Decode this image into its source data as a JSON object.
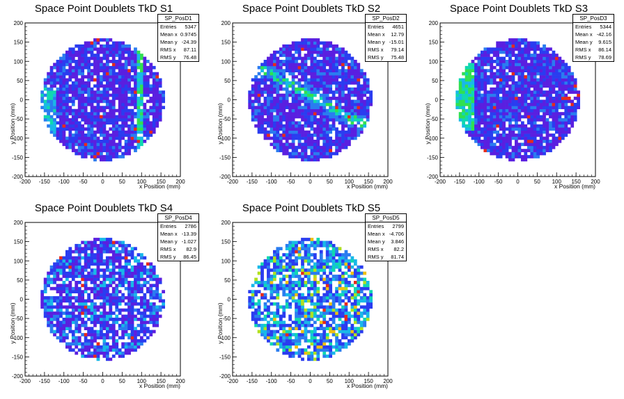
{
  "chart_data": [
    {
      "type": "heatmap",
      "title": "Space Point Doublets TkD S1",
      "xlabel": "x Position (mm)",
      "ylabel": "y Position (mm)",
      "xlim": [
        -200,
        200
      ],
      "ylim": [
        -200,
        200
      ],
      "xticks": [
        "-200",
        "-150",
        "-100",
        "-50",
        "0",
        "50",
        "100",
        "150",
        "200"
      ],
      "yticks": [
        "-200",
        "-150",
        "-100",
        "-50",
        "0",
        "50",
        "100",
        "150",
        "200"
      ],
      "stats": {
        "name": "SP_PosD1",
        "rows": [
          {
            "label": "Entries",
            "value": "5347"
          },
          {
            "label": "Mean x",
            "value": "0.9745"
          },
          {
            "label": "Mean y",
            "value": "-24.39"
          },
          {
            "label": "RMS x",
            "value": "87.11"
          },
          {
            "label": "RMS y",
            "value": "76.48"
          }
        ]
      },
      "pattern": "vertical-band-left-band",
      "disk_radius": 160
    },
    {
      "type": "heatmap",
      "title": "Space Point Doublets TkD S2",
      "xlabel": "x Position (mm)",
      "ylabel": "y Position (mm)",
      "xlim": [
        -200,
        200
      ],
      "ylim": [
        -200,
        200
      ],
      "xticks": [
        "-200",
        "-150",
        "-100",
        "-50",
        "0",
        "50",
        "100",
        "150",
        "200"
      ],
      "yticks": [
        "-200",
        "-150",
        "-100",
        "-50",
        "0",
        "50",
        "100",
        "150",
        "200"
      ],
      "stats": {
        "name": "SP_PosD2",
        "rows": [
          {
            "label": "Entries",
            "value": "4651"
          },
          {
            "label": "Mean x",
            "value": "12.79"
          },
          {
            "label": "Mean y",
            "value": "-15.01"
          },
          {
            "label": "RMS x",
            "value": "79.14"
          },
          {
            "label": "RMS y",
            "value": "75.48"
          }
        ]
      },
      "pattern": "diagonal-band",
      "disk_radius": 160
    },
    {
      "type": "heatmap",
      "title": "Space Point Doublets TkD S3",
      "xlabel": "x Position (mm)",
      "ylabel": "y Position (mm)",
      "xlim": [
        -200,
        200
      ],
      "ylim": [
        -200,
        200
      ],
      "xticks": [
        "-200",
        "-150",
        "-100",
        "-50",
        "0",
        "50",
        "100",
        "150",
        "200"
      ],
      "yticks": [
        "-200",
        "-150",
        "-100",
        "-50",
        "0",
        "50",
        "100",
        "150",
        "200"
      ],
      "stats": {
        "name": "SP_PosD3",
        "rows": [
          {
            "label": "Entries",
            "value": "5344"
          },
          {
            "label": "Mean x",
            "value": "-42.16"
          },
          {
            "label": "Mean y",
            "value": "9.615"
          },
          {
            "label": "RMS x",
            "value": "86.14"
          },
          {
            "label": "RMS y",
            "value": "78.69"
          }
        ]
      },
      "pattern": "left-edge",
      "disk_radius": 160
    },
    {
      "type": "heatmap",
      "title": "Space Point Doublets TkD S4",
      "xlabel": "x Position (mm)",
      "ylabel": "y Position (mm)",
      "xlim": [
        -200,
        200
      ],
      "ylim": [
        -200,
        200
      ],
      "xticks": [
        "-200",
        "-150",
        "-100",
        "-50",
        "0",
        "50",
        "100",
        "150",
        "200"
      ],
      "yticks": [
        "-200",
        "-150",
        "-100",
        "-50",
        "0",
        "50",
        "100",
        "150",
        "200"
      ],
      "stats": {
        "name": "SP_PosD4",
        "rows": [
          {
            "label": "Entries",
            "value": "2786"
          },
          {
            "label": "Mean x",
            "value": "-13.39"
          },
          {
            "label": "Mean y",
            "value": "-1.027"
          },
          {
            "label": "RMS x",
            "value": "82.9"
          },
          {
            "label": "RMS y",
            "value": "86.45"
          }
        ]
      },
      "pattern": "sparse",
      "disk_radius": 160
    },
    {
      "type": "heatmap",
      "title": "Space Point Doublets TkD S5",
      "xlabel": "x Position (mm)",
      "ylabel": "y Position (mm)",
      "xlim": [
        -200,
        200
      ],
      "ylim": [
        -200,
        200
      ],
      "xticks": [
        "-200",
        "-150",
        "-100",
        "-50",
        "0",
        "50",
        "100",
        "150",
        "200"
      ],
      "yticks": [
        "-200",
        "-150",
        "-100",
        "-50",
        "0",
        "50",
        "100",
        "150",
        "200"
      ],
      "stats": {
        "name": "SP_PosD5",
        "rows": [
          {
            "label": "Entries",
            "value": "2799"
          },
          {
            "label": "Mean x",
            "value": "-4.706"
          },
          {
            "label": "Mean y",
            "value": "3.846"
          },
          {
            "label": "RMS x",
            "value": "82.2"
          },
          {
            "label": "RMS y",
            "value": "81.74"
          }
        ]
      },
      "pattern": "speckled",
      "disk_radius": 160
    }
  ],
  "palette": [
    "#5a1fe0",
    "#2a3cf0",
    "#2a7cf0",
    "#18b8e8",
    "#10d8b0",
    "#30e050",
    "#b0e020",
    "#f0c010",
    "#e82a1a"
  ]
}
